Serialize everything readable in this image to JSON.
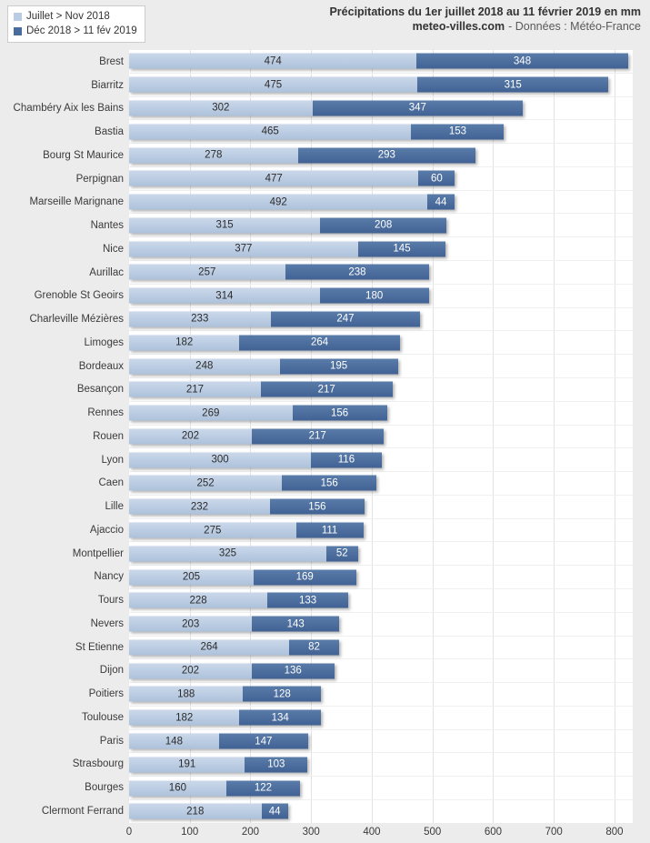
{
  "chart_data": {
    "type": "bar",
    "orientation": "horizontal",
    "stacked": true,
    "unit": "mm",
    "title": "Précipitations du 1er juillet 2018 au 11 février 2019 en mm",
    "subtitle": {
      "site": "meteo-villes.com",
      "source": "- Données : Météo-France"
    },
    "legend_position": "top-left",
    "grid": true,
    "xlim": [
      0,
      830
    ],
    "x_ticks": [
      0,
      100,
      200,
      300,
      400,
      500,
      600,
      700,
      800
    ],
    "categories": [
      "Brest",
      "Biarritz",
      "Chambéry Aix les Bains",
      "Bastia",
      "Bourg St Maurice",
      "Perpignan",
      "Marseille Marignane",
      "Nantes",
      "Nice",
      "Aurillac",
      "Grenoble St Geoirs",
      "Charleville Mézières",
      "Limoges",
      "Bordeaux",
      "Besançon",
      "Rennes",
      "Rouen",
      "Lyon",
      "Caen",
      "Lille",
      "Ajaccio",
      "Montpellier",
      "Nancy",
      "Tours",
      "Nevers",
      "St Etienne",
      "Dijon",
      "Poitiers",
      "Toulouse",
      "Paris",
      "Strasbourg",
      "Bourges",
      "Clermont Ferrand"
    ],
    "series": [
      {
        "name": "Juillet > Nov 2018",
        "color": "#b8cce3",
        "label_color": "#2b2b2b",
        "values": [
          474,
          475,
          302,
          465,
          278,
          477,
          492,
          315,
          377,
          257,
          314,
          233,
          182,
          248,
          217,
          269,
          202,
          300,
          252,
          232,
          275,
          325,
          205,
          228,
          203,
          264,
          202,
          188,
          182,
          148,
          191,
          160,
          218
        ]
      },
      {
        "name": "Déc 2018 > 11 fév 2019",
        "color": "#476c9d",
        "label_color": "#ffffff",
        "values": [
          348,
          315,
          347,
          153,
          293,
          60,
          44,
          208,
          145,
          238,
          180,
          247,
          264,
          195,
          217,
          156,
          217,
          116,
          156,
          156,
          111,
          52,
          169,
          133,
          143,
          82,
          136,
          128,
          134,
          147,
          103,
          122,
          44
        ]
      }
    ],
    "colors": {
      "background": "#ececec",
      "plot_background": "#ffffff",
      "gridline": "#e2e2e2",
      "row_separator": "#f0f0f0",
      "title_text": "#333333",
      "subtitle_text": "#595959",
      "axis_text": "#3a3a3a"
    }
  }
}
